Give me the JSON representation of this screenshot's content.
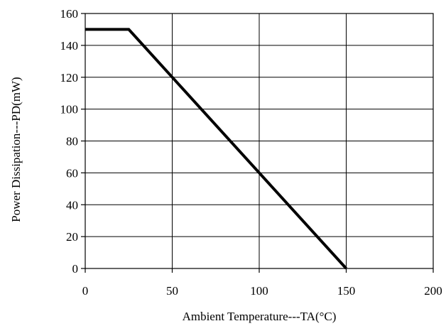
{
  "chart_data": {
    "type": "line",
    "title": "",
    "xlabel": "Ambient Temperature---TA(°C)",
    "ylabel": "Power Dissipation---PD(mW)",
    "xlim": [
      0,
      200
    ],
    "ylim": [
      0,
      160
    ],
    "xticks": [
      "0",
      "50",
      "100",
      "150",
      "200"
    ],
    "yticks": [
      "0",
      "20",
      "40",
      "60",
      "80",
      "100",
      "120",
      "140",
      "160"
    ],
    "grid": true,
    "legend": "none",
    "series": [
      {
        "x": [
          0,
          25,
          150
        ],
        "y": [
          150,
          150,
          0
        ],
        "color": "#000000"
      }
    ]
  }
}
